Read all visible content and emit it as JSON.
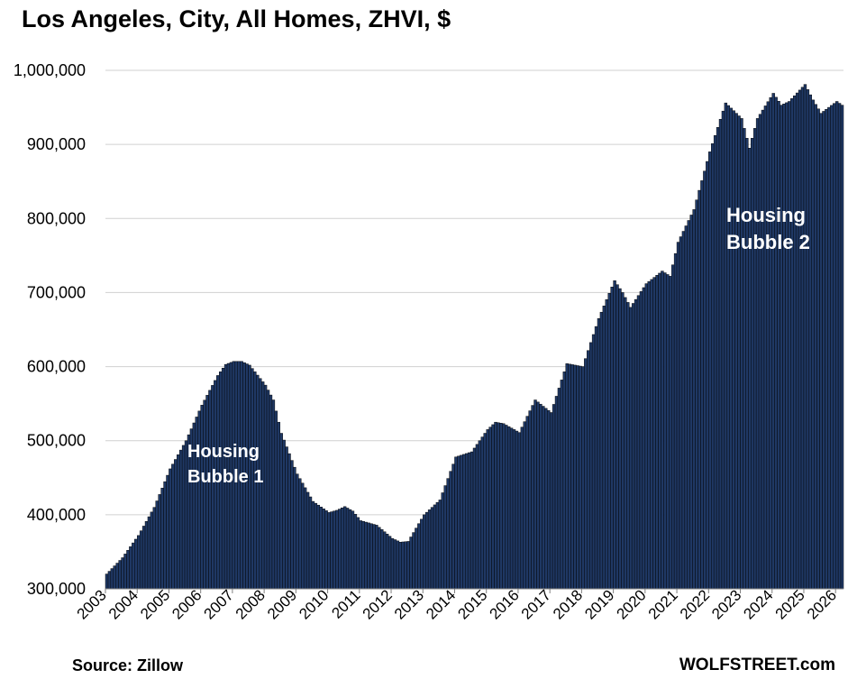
{
  "chart_data": {
    "type": "bar",
    "title": "Los Angeles, City, All Homes, ZHVI, $",
    "source": "Source: Zillow",
    "brand": "WOLFSTREET.com",
    "bar_color": "#1f3864",
    "bar_edge_color": "#000000",
    "grid": true,
    "ylim": [
      300000,
      1000000
    ],
    "yticks": [
      300000,
      400000,
      500000,
      600000,
      700000,
      800000,
      900000,
      1000000
    ],
    "ytick_labels": [
      "300,000",
      "400,000",
      "500,000",
      "600,000",
      "700,000",
      "800,000",
      "900,000",
      "1,000,000"
    ],
    "xtick_labels": [
      "2003",
      "2004",
      "2005",
      "2006",
      "2007",
      "2008",
      "2009",
      "2010",
      "2011",
      "2012",
      "2013",
      "2014",
      "2015",
      "2016",
      "2017",
      "2018",
      "2019",
      "2020",
      "2021",
      "2022",
      "2023",
      "2024",
      "2025",
      "2026"
    ],
    "frequency": "monthly",
    "start_month": "2003-01",
    "end_month": "2026-03",
    "annotations": [
      {
        "lines": [
          "Housing",
          "Bubble 1"
        ],
        "color": "#ffffff"
      },
      {
        "lines": [
          "Housing",
          "Bubble 2"
        ],
        "color": "#ffffff"
      }
    ],
    "anchor_values": [
      [
        "2003-01",
        320000
      ],
      [
        "2003-07",
        342000
      ],
      [
        "2004-01",
        372000
      ],
      [
        "2004-07",
        410000
      ],
      [
        "2005-01",
        462000
      ],
      [
        "2005-07",
        500000
      ],
      [
        "2006-01",
        548000
      ],
      [
        "2006-07",
        588000
      ],
      [
        "2006-10",
        603000
      ],
      [
        "2007-01",
        607000
      ],
      [
        "2007-04",
        607000
      ],
      [
        "2007-07",
        602000
      ],
      [
        "2008-01",
        575000
      ],
      [
        "2008-04",
        555000
      ],
      [
        "2008-07",
        510000
      ],
      [
        "2009-01",
        455000
      ],
      [
        "2009-07",
        418000
      ],
      [
        "2010-01",
        403000
      ],
      [
        "2010-04",
        406000
      ],
      [
        "2010-07",
        411000
      ],
      [
        "2010-10",
        405000
      ],
      [
        "2011-01",
        392000
      ],
      [
        "2011-07",
        386000
      ],
      [
        "2012-01",
        368000
      ],
      [
        "2012-04",
        363000
      ],
      [
        "2012-07",
        364000
      ],
      [
        "2013-01",
        400000
      ],
      [
        "2013-07",
        420000
      ],
      [
        "2014-01",
        478000
      ],
      [
        "2014-07",
        485000
      ],
      [
        "2015-01",
        515000
      ],
      [
        "2015-04",
        525000
      ],
      [
        "2015-07",
        523000
      ],
      [
        "2016-01",
        511000
      ],
      [
        "2016-07",
        555000
      ],
      [
        "2017-01",
        538000
      ],
      [
        "2017-07",
        604000
      ],
      [
        "2018-01",
        600000
      ],
      [
        "2018-07",
        665000
      ],
      [
        "2019-01",
        716000
      ],
      [
        "2019-04",
        700000
      ],
      [
        "2019-07",
        680000
      ],
      [
        "2020-01",
        712000
      ],
      [
        "2020-07",
        729000
      ],
      [
        "2020-10",
        722000
      ],
      [
        "2021-01",
        768000
      ],
      [
        "2021-07",
        812000
      ],
      [
        "2022-01",
        890000
      ],
      [
        "2022-07",
        956000
      ],
      [
        "2023-01",
        935000
      ],
      [
        "2023-04",
        895000
      ],
      [
        "2023-07",
        935000
      ],
      [
        "2024-01",
        969000
      ],
      [
        "2024-04",
        953000
      ],
      [
        "2024-07",
        958000
      ],
      [
        "2025-01",
        981000
      ],
      [
        "2025-04",
        960000
      ],
      [
        "2025-07",
        942000
      ],
      [
        "2026-01",
        958000
      ],
      [
        "2026-03",
        953000
      ]
    ]
  }
}
